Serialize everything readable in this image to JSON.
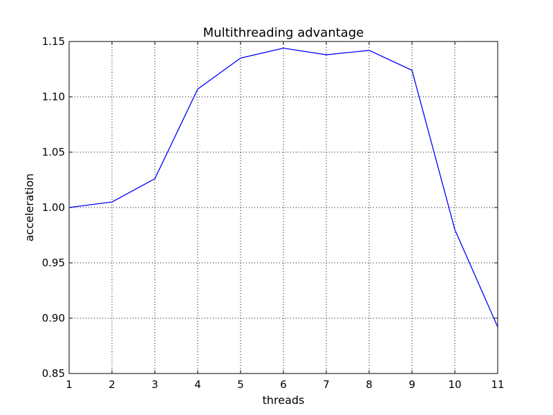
{
  "chart_data": {
    "type": "line",
    "title": "Multithreading advantage",
    "xlabel": "threads",
    "ylabel": "acceleration",
    "xlim": [
      1,
      11
    ],
    "ylim": [
      0.85,
      1.15
    ],
    "xticks": [
      1,
      2,
      3,
      4,
      5,
      6,
      7,
      8,
      9,
      10,
      11
    ],
    "yticks": [
      "0.85",
      "0.90",
      "0.95",
      "1.00",
      "1.05",
      "1.10",
      "1.15"
    ],
    "grid": true,
    "series": [
      {
        "color": "#0000ff",
        "x": [
          1,
          2,
          3,
          4,
          5,
          6,
          7,
          8,
          9,
          10,
          11
        ],
        "y": [
          1.0,
          1.005,
          1.026,
          1.107,
          1.135,
          1.144,
          1.138,
          1.142,
          1.124,
          0.98,
          0.892
        ]
      }
    ]
  }
}
